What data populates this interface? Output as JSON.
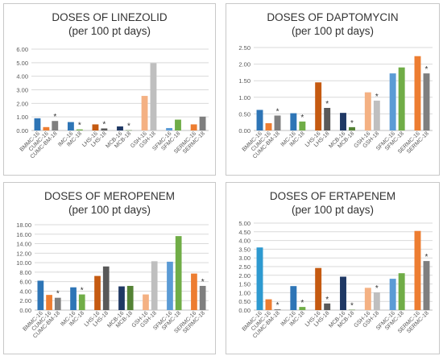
{
  "colors": {
    "orange": "#ED7D31",
    "gray": "#7F7F7F",
    "blue": "#2E75B6",
    "lightblue": "#5B9BD5",
    "green": "#70AD47",
    "darkgreen": "#548235",
    "brown": "#C55A11",
    "darkgray": "#595959",
    "navy": "#1F3864",
    "lightorange": "#F4B183",
    "lightgray": "#BFBFBF",
    "darkblue": "#2F5597",
    "cyan": "#2E9AD0",
    "grid": "#D9D9D9",
    "text": "#595959"
  },
  "chart_data": [
    {
      "type": "bar",
      "title": "DOSES OF LINEZOLID",
      "subtitle": "(per 100 pt days)",
      "ylim": [
        0,
        6
      ],
      "yticks": [
        "0.00",
        "1.00",
        "2.00",
        "3.00",
        "4.00",
        "5.00",
        "6.00"
      ],
      "grid": true,
      "categories": [
        "BMMC-16",
        "CUMC-16",
        "CUMC-BM-18",
        "IMC-16",
        "IMC-18",
        "LHS-16",
        "LHS-18",
        "MCB-16",
        "MCB-18",
        "GSH-16",
        "GSH-18",
        "SFMC-16",
        "SFMC-18",
        "SERMC-16",
        "SERMC-18"
      ],
      "values": [
        0.9,
        0.25,
        0.7,
        0.62,
        0.08,
        0.45,
        0.15,
        0.3,
        0.02,
        2.55,
        4.97,
        0.18,
        0.8,
        0.45,
        1.02
      ],
      "colors": [
        "blue",
        "orange",
        "gray",
        "blue",
        "green",
        "brown",
        "darkgray",
        "navy",
        "darkgreen",
        "lightorange",
        "lightgray",
        "lightblue",
        "green",
        "orange",
        "gray"
      ],
      "stars": [
        2,
        4,
        6,
        8
      ],
      "groups": [
        3,
        2,
        2,
        2,
        2,
        2,
        2
      ]
    },
    {
      "type": "bar",
      "title": "DOSES OF DAPTOMYCIN",
      "subtitle": "(per 100 pt days)",
      "ylim": [
        0,
        2.5
      ],
      "yticks": [
        "0.00",
        "0.50",
        "1.00",
        "1.50",
        "2.00",
        "2.50"
      ],
      "grid": true,
      "categories": [
        "BMMC-16",
        "CUMC-16",
        "CUMC-BM-18",
        "IMC-16",
        "IMC-18",
        "LHS-16",
        "LHS-18",
        "MCB-16",
        "MCB-18",
        "GSH-16",
        "GSH-18",
        "SFMC-16",
        "SFMC-18",
        "SERMC-16",
        "SERMC-18"
      ],
      "values": [
        0.62,
        0.22,
        0.45,
        0.52,
        0.27,
        1.45,
        0.68,
        0.53,
        0.1,
        1.15,
        0.9,
        1.72,
        1.9,
        2.24,
        1.72
      ],
      "colors": [
        "blue",
        "orange",
        "gray",
        "blue",
        "green",
        "brown",
        "darkgray",
        "navy",
        "darkgreen",
        "lightorange",
        "lightgray",
        "lightblue",
        "green",
        "orange",
        "gray"
      ],
      "stars": [
        2,
        4,
        6,
        8,
        10,
        14
      ],
      "groups": [
        3,
        2,
        2,
        2,
        2,
        2,
        2
      ]
    },
    {
      "type": "bar",
      "title": "DOSES OF MEROPENEM",
      "subtitle": "(per 100 pt days)",
      "ylim": [
        0,
        18
      ],
      "yticks": [
        "0.00",
        "2.00",
        "4.00",
        "6.00",
        "8.00",
        "10.00",
        "12.00",
        "14.00",
        "16.00",
        "18.00"
      ],
      "grid": true,
      "categories": [
        "BMMC-16",
        "CUMC-16",
        "CUMC-BM-18",
        "IMC-16",
        "IMC-18",
        "LHS-16",
        "LHS-18",
        "MCB-16",
        "MCB-18",
        "GSH-16",
        "GSH-18",
        "SFMC-16",
        "SFMC-18",
        "SERMC-16",
        "SERMC-18"
      ],
      "values": [
        6.2,
        3.2,
        2.6,
        4.8,
        3.3,
        7.2,
        9.2,
        5.0,
        5.1,
        3.3,
        10.3,
        10.2,
        15.6,
        7.7,
        5.1
      ],
      "colors": [
        "blue",
        "orange",
        "gray",
        "blue",
        "green",
        "brown",
        "darkgray",
        "navy",
        "darkgreen",
        "lightorange",
        "lightgray",
        "lightblue",
        "green",
        "orange",
        "gray"
      ],
      "stars": [
        2,
        4,
        14
      ],
      "groups": [
        3,
        2,
        2,
        2,
        2,
        2,
        2
      ]
    },
    {
      "type": "bar",
      "title": "DOSES OF ERTAPENEM",
      "subtitle": "(per 100 pt days)",
      "ylim": [
        0,
        5
      ],
      "yticks": [
        "0.00",
        "0.50",
        "1.00",
        "1.50",
        "2.00",
        "2.50",
        "3.00",
        "3.50",
        "4.00",
        "4.50",
        "5.00"
      ],
      "grid": true,
      "categories": [
        "BMMC-16",
        "CUMC-16",
        "CUMC-BM-18",
        "IMC-16",
        "IMC-18",
        "LHS-16",
        "LHS-18",
        "MCB-16",
        "MCB-18",
        "GSH-16",
        "GSH-18",
        "SFMC-16",
        "SFMC-18",
        "SERMC-16",
        "SERMC-18"
      ],
      "values": [
        3.6,
        0.62,
        0.05,
        1.38,
        0.18,
        2.42,
        0.38,
        1.92,
        0.02,
        1.28,
        1.02,
        1.8,
        2.12,
        4.55,
        2.82
      ],
      "colors": [
        "cyan",
        "orange",
        "gray",
        "blue",
        "green",
        "brown",
        "darkgray",
        "navy",
        "darkgreen",
        "lightorange",
        "lightgray",
        "lightblue",
        "green",
        "orange",
        "gray"
      ],
      "stars": [
        2,
        4,
        6,
        8,
        10,
        14
      ],
      "groups": [
        3,
        2,
        2,
        2,
        2,
        2,
        2
      ]
    }
  ]
}
